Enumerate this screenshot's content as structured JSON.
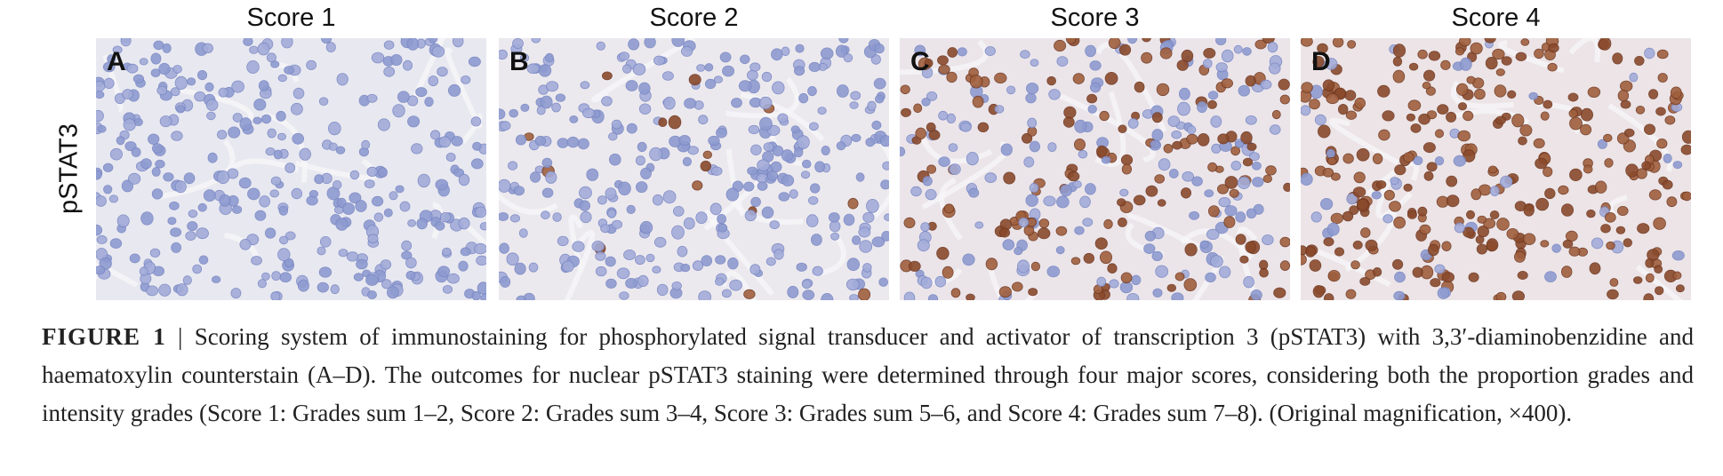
{
  "row_label": "pSTAT3",
  "panels": [
    {
      "title": "Score 1",
      "label": "A"
    },
    {
      "title": "Score 2",
      "label": "B"
    },
    {
      "title": "Score 3",
      "label": "C"
    },
    {
      "title": "Score 4",
      "label": "D"
    }
  ],
  "caption": {
    "label": "FIGURE 1",
    "text": "| Scoring system of immunostaining for phosphorylated signal transducer and activator of transcription 3 (pSTAT3) with 3,3′-diaminobenzidine and haematoxylin counterstain (A–D). The outcomes for nuclear pSTAT3 staining were determined through four major scores, considering both the proportion grades and intensity grades (Score 1: Grades sum 1–2, Score 2: Grades sum 3–4, Score 3: Grades sum 5–6, and Score 4: Grades sum 7–8). (Original magnification, ×400)."
  }
}
